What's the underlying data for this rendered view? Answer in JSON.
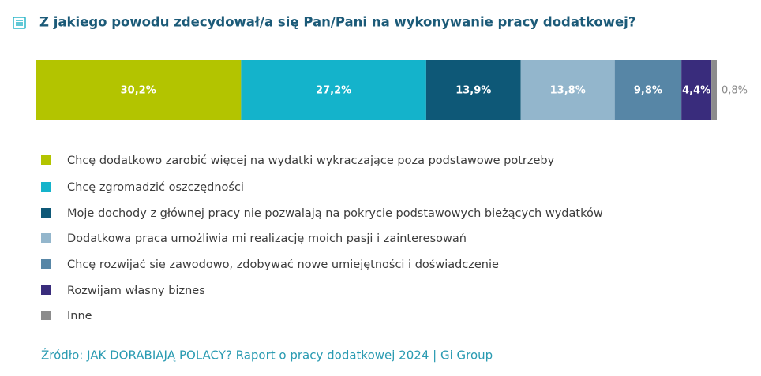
{
  "chart_data": {
    "type": "stacked-bar",
    "title": "Z jakiego powodu zdecydował/a się Pan/Pani na wykonywanie pracy dodatkowej?",
    "series": [
      {
        "name": "Chcę dodatkowo zarobić więcej na wydatki wykraczające poza podstawowe potrzeby",
        "color": "#b3c400",
        "values": [
          30.2
        ],
        "value_labels": [
          "30,2%"
        ]
      },
      {
        "name": "Chcę zgromadzić oszczędności",
        "color": "#14b3cb",
        "values": [
          27.2
        ],
        "value_labels": [
          "27,2%"
        ]
      },
      {
        "name": "Moje dochody z głównej pracy nie pozwalają na pokrycie podstawowych bieżących wydatków",
        "color": "#0e5877",
        "values": [
          13.9
        ],
        "value_labels": [
          "13,9%"
        ]
      },
      {
        "name": "Dodatkowa praca umożliwia mi realizację moich pasji i zainteresowań",
        "color": "#93b6cc",
        "values": [
          13.8
        ],
        "value_labels": [
          "13,8%"
        ]
      },
      {
        "name": "Chcę rozwijać się zawodowo, zdobywać nowe umiejętności i doświadczenie",
        "color": "#5786a6",
        "values": [
          9.8
        ],
        "value_labels": [
          "9,8%"
        ]
      },
      {
        "name": "Rozwijam własny biznes",
        "color": "#392c7c",
        "values": [
          4.4
        ],
        "value_labels": [
          "4,4%"
        ]
      },
      {
        "name": "Inne",
        "color": "#8c8c8c",
        "values": [
          0.8
        ],
        "value_labels": [
          "0,8%"
        ]
      }
    ],
    "source": "Źródło: JAK DORABIAJĄ POLACY? Raport o pracy dodatkowej 2024 | Gi Group"
  }
}
